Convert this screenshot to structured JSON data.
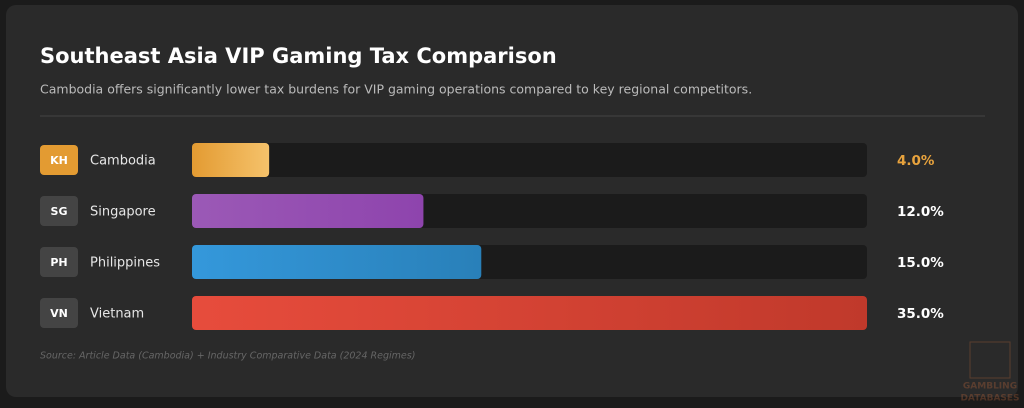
{
  "chart_data": {
    "type": "hbar",
    "title": "Southeast Asia VIP Gaming Tax Comparison",
    "subtitle": "Cambodia offers significantly lower tax burdens for VIP gaming operations compared to key regional competitors.",
    "categories": [
      "Cambodia",
      "Singapore",
      "Philippines",
      "Vietnam"
    ],
    "codes": [
      "KH",
      "SG",
      "PH",
      "VN"
    ],
    "values": [
      4,
      12,
      15,
      35
    ],
    "value_labels": [
      "4.0%",
      "12.0%",
      "15.0%",
      "35.0%"
    ],
    "colors": [
      "#e39b32",
      "#9b59b6",
      "#3498db",
      "#e74c3c"
    ],
    "colors_end": [
      "#f5c26b",
      "#8e44ad",
      "#2980b9",
      "#c0392b"
    ],
    "label_colors": [
      "#e8a33d",
      "#ffffff",
      "#ffffff",
      "#ffffff"
    ],
    "badge_colors": [
      "#e39b32",
      "#444444",
      "#444444",
      "#444444"
    ],
    "xlim": [
      0,
      35
    ],
    "source": "Source: Article Data (Cambodia) + Industry Comparative Data (2024 Regimes)",
    "watermark": [
      "GAMBLING",
      "DATABASES"
    ]
  }
}
